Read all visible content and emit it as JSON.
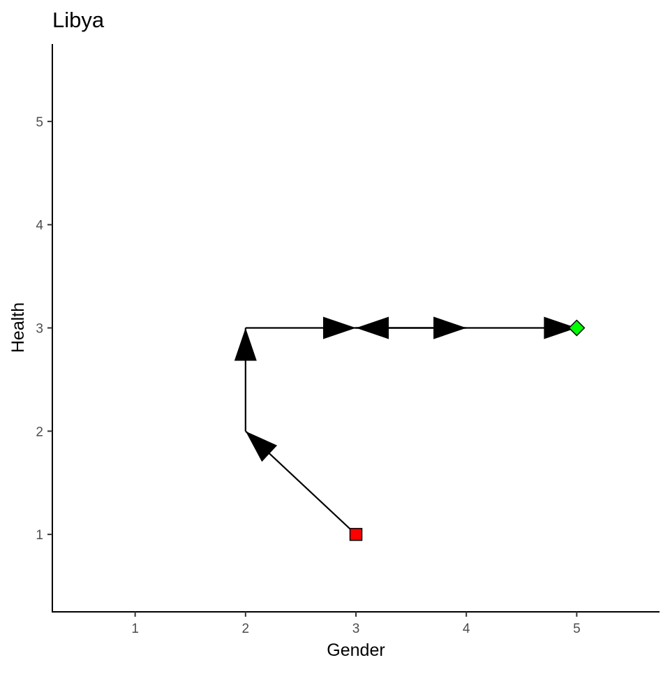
{
  "chart_data": {
    "type": "scatter",
    "title": "Libya",
    "xlabel": "Gender",
    "ylabel": "Health",
    "xlim": [
      0.25,
      5.75
    ],
    "ylim": [
      0.25,
      5.75
    ],
    "xticks": [
      1,
      2,
      3,
      4,
      5
    ],
    "yticks": [
      1,
      2,
      3,
      4,
      5
    ],
    "grid": false,
    "path": [
      {
        "x": 3,
        "y": 1
      },
      {
        "x": 2,
        "y": 2
      },
      {
        "x": 2,
        "y": 3
      },
      {
        "x": 3,
        "y": 3
      },
      {
        "x": 4,
        "y": 3
      },
      {
        "x": 3,
        "y": 3
      },
      {
        "x": 4,
        "y": 3
      },
      {
        "x": 5,
        "y": 3
      }
    ],
    "start_point": {
      "x": 3,
      "y": 1,
      "marker": "square",
      "color": "#ff0000"
    },
    "end_point": {
      "x": 5,
      "y": 3,
      "marker": "diamond",
      "color": "#00ff00"
    },
    "line_color": "#000000"
  }
}
